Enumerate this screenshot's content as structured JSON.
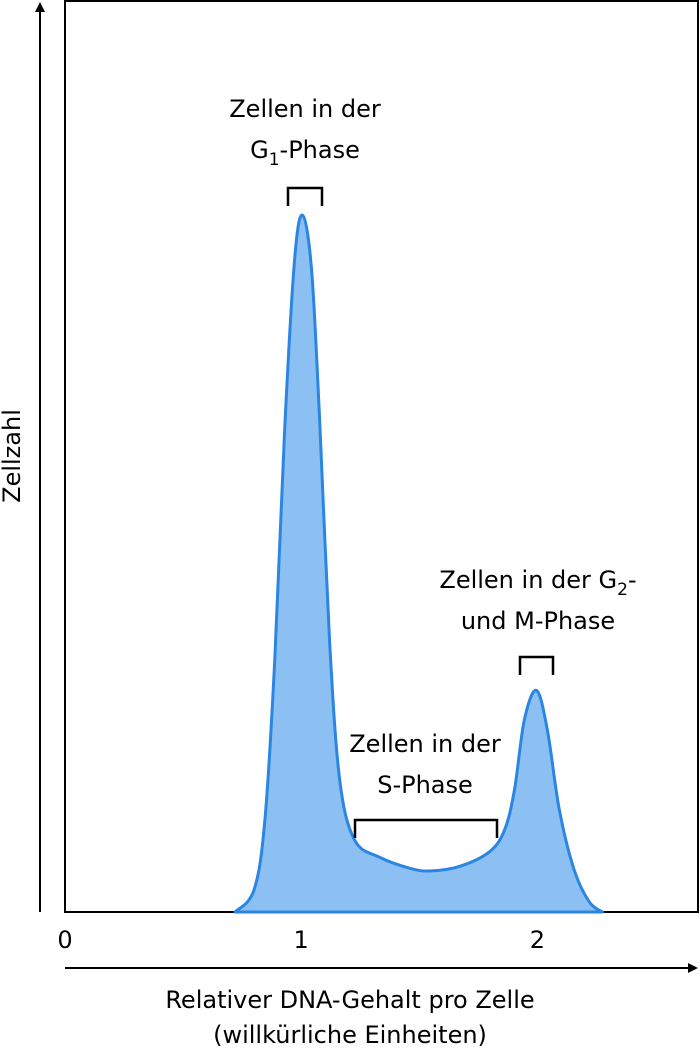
{
  "chart_data": {
    "type": "area",
    "ylabel": "Zellzahl",
    "xlabel": [
      "Relativer DNA-Gehalt pro Zelle",
      "(willkürliche Einheiten)"
    ],
    "x": [
      0.72,
      0.8,
      0.846,
      0.888,
      0.93,
      0.972,
      1.006,
      1.044,
      1.078,
      1.12,
      1.163,
      1.226,
      1.332,
      1.459,
      1.543,
      1.67,
      1.797,
      1.861,
      1.903,
      1.945,
      1.996,
      2.042,
      2.093,
      2.156,
      2.22,
      2.275
    ],
    "values": [
      0,
      2.4,
      10,
      27.6,
      52.9,
      71.5,
      76.4,
      70.4,
      54,
      29.8,
      14.5,
      7.9,
      6.0,
      4.8,
      4.5,
      5.0,
      6.6,
      9.0,
      13.4,
      21.1,
      24.3,
      20.0,
      11.2,
      4.6,
      1.1,
      0
    ],
    "color": "#8cc0f2",
    "edge_color": "#2a86e2",
    "xlim": [
      0,
      2.68
    ],
    "ylim": [
      0,
      100
    ],
    "xticks": [
      0,
      1,
      2
    ],
    "annotations": [
      {
        "lines": [
          [
            "Zellen in der"
          ],
          [
            "G",
            "1",
            "-Phase"
          ]
        ]
      },
      {
        "lines": [
          [
            "Zellen in der"
          ],
          [
            "S-Phase"
          ]
        ]
      },
      {
        "lines": [
          [
            "Zellen in der G",
            "2",
            "-"
          ],
          [
            "und M-Phase"
          ]
        ]
      }
    ]
  }
}
